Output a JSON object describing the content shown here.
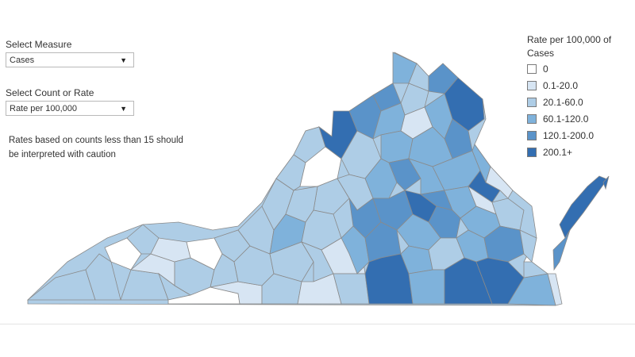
{
  "controls": {
    "measure": {
      "label": "Select Measure",
      "value": "Cases"
    },
    "count_rate": {
      "label": "Select Count or Rate",
      "value": "Rate per 100,000"
    }
  },
  "note": "Rates based on counts less than 15 should be interpreted with caution",
  "legend": {
    "title": "Rate per 100,000 of Cases",
    "items": [
      {
        "label": "0",
        "color": "#ffffff"
      },
      {
        "label": "0.1-20.0",
        "color": "#d7e5f3"
      },
      {
        "label": "20.1-60.0",
        "color": "#aecde6"
      },
      {
        "label": "60.1-120.0",
        "color": "#7fb2db"
      },
      {
        "label": "120.1-200.0",
        "color": "#5a93c9"
      },
      {
        "label": "200.1+",
        "color": "#336eb1"
      }
    ]
  },
  "map": {
    "region": "Virginia counties",
    "border_color": "#8a8a8a"
  }
}
